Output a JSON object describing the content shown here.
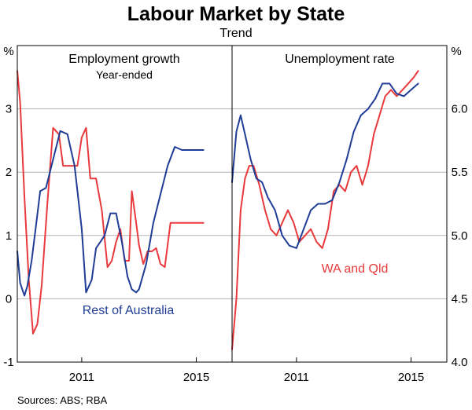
{
  "figure": {
    "title": "Labour Market by State",
    "subtitle": "Trend",
    "source": "Sources:  ABS; RBA"
  },
  "colors": {
    "rest_of_australia": "#1f3c96",
    "wa_and_qld": "#e8393c",
    "grid": "#b3b3b3"
  },
  "chart_data": [
    {
      "type": "line",
      "title": "Employment growth",
      "subtitle": "Year-ended",
      "ylabel": "%",
      "ylim": [
        -1,
        4
      ],
      "yticks": [
        "-1",
        "0",
        "1",
        "2",
        "3"
      ],
      "xlim": [
        2008.75,
        2016.25
      ],
      "xticks": [
        {
          "value": 2011.0,
          "label": "2011"
        },
        {
          "value": 2015.0,
          "label": "2015"
        }
      ],
      "grid": true,
      "series": [
        {
          "name": "Rest of Australia",
          "color": "#1f3c96",
          "x": [
            2008.75,
            2008.85,
            2009.0,
            2009.1,
            2009.25,
            2009.4,
            2009.55,
            2009.75,
            2010.0,
            2010.25,
            2010.5,
            2010.75,
            2011.0,
            2011.15,
            2011.35,
            2011.5,
            2011.65,
            2011.8,
            2012.0,
            2012.2,
            2012.4,
            2012.6,
            2012.75,
            2012.9,
            2013.0,
            2013.25,
            2013.5,
            2013.75,
            2014.0,
            2014.25,
            2014.5,
            2014.75,
            2015.0,
            2015.1,
            2015.25
          ],
          "y": [
            0.75,
            0.25,
            0.05,
            0.2,
            0.6,
            1.15,
            1.7,
            1.75,
            2.2,
            2.65,
            2.6,
            2.1,
            1.1,
            0.1,
            0.3,
            0.8,
            0.9,
            1.0,
            1.35,
            1.35,
            0.9,
            0.35,
            0.15,
            0.1,
            0.15,
            0.55,
            1.2,
            1.65,
            2.1,
            2.4,
            2.35,
            2.35,
            2.35,
            2.35,
            2.35
          ]
        },
        {
          "name": "WA and Qld",
          "color": "#e8393c",
          "x": [
            2008.75,
            2008.85,
            2009.0,
            2009.15,
            2009.3,
            2009.45,
            2009.6,
            2009.8,
            2010.0,
            2010.2,
            2010.35,
            2010.5,
            2010.7,
            2010.85,
            2011.0,
            2011.15,
            2011.3,
            2011.5,
            2011.7,
            2011.9,
            2012.05,
            2012.2,
            2012.35,
            2012.5,
            2012.65,
            2012.75,
            2012.9,
            2013.0,
            2013.15,
            2013.3,
            2013.45,
            2013.6,
            2013.75,
            2013.9,
            2014.0,
            2014.1,
            2014.25,
            2014.4,
            2014.5,
            2014.6,
            2014.75,
            2014.9,
            2015.0,
            2015.1,
            2015.25
          ],
          "y": [
            3.6,
            3.1,
            1.6,
            0.3,
            -0.55,
            -0.4,
            0.2,
            1.5,
            2.7,
            2.6,
            2.1,
            2.1,
            2.1,
            2.1,
            2.55,
            2.7,
            1.9,
            1.9,
            1.4,
            0.5,
            0.6,
            0.9,
            1.1,
            0.6,
            0.6,
            1.7,
            1.2,
            0.85,
            0.55,
            0.75,
            0.75,
            0.8,
            0.55,
            0.5,
            0.85,
            1.2,
            1.2,
            1.2,
            1.2,
            1.2,
            1.2,
            1.2,
            1.2,
            1.2,
            1.2
          ]
        }
      ]
    },
    {
      "type": "line",
      "title": "Unemployment rate",
      "ylabel": "%",
      "ylim": [
        4.0,
        6.5
      ],
      "yticks": [
        "4.0",
        "4.5",
        "5.0",
        "5.5",
        "6.0"
      ],
      "xlim": [
        2008.75,
        2016.25
      ],
      "xticks": [
        {
          "value": 2011.0,
          "label": "2011"
        },
        {
          "value": 2015.0,
          "label": "2015"
        }
      ],
      "grid": true,
      "series": [
        {
          "name": "Rest of Australia",
          "color": "#1f3c96",
          "x": [
            2008.75,
            2008.9,
            2009.05,
            2009.2,
            2009.4,
            2009.6,
            2009.8,
            2010.0,
            2010.25,
            2010.5,
            2010.75,
            2011.0,
            2011.25,
            2011.5,
            2011.75,
            2012.0,
            2012.25,
            2012.5,
            2012.75,
            2013.0,
            2013.25,
            2013.5,
            2013.75,
            2014.0,
            2014.25,
            2014.5,
            2014.75,
            2015.0,
            2015.25
          ],
          "y": [
            5.42,
            5.82,
            5.95,
            5.8,
            5.6,
            5.45,
            5.42,
            5.3,
            5.2,
            5.0,
            4.92,
            4.9,
            5.05,
            5.2,
            5.25,
            5.25,
            5.28,
            5.42,
            5.6,
            5.82,
            5.95,
            6.0,
            6.08,
            6.2,
            6.2,
            6.12,
            6.1,
            6.15,
            6.2
          ]
        },
        {
          "name": "WA and Qld",
          "color": "#e8393c",
          "x": [
            2008.75,
            2008.9,
            2009.05,
            2009.2,
            2009.35,
            2009.5,
            2009.7,
            2009.9,
            2010.1,
            2010.3,
            2010.5,
            2010.7,
            2010.9,
            2011.1,
            2011.3,
            2011.5,
            2011.7,
            2011.9,
            2012.1,
            2012.3,
            2012.5,
            2012.7,
            2012.9,
            2013.1,
            2013.3,
            2013.5,
            2013.7,
            2013.9,
            2014.1,
            2014.3,
            2014.5,
            2014.7,
            2014.9,
            2015.1,
            2015.25
          ],
          "y": [
            4.1,
            4.5,
            5.2,
            5.45,
            5.55,
            5.55,
            5.4,
            5.2,
            5.05,
            5.0,
            5.1,
            5.2,
            5.1,
            4.95,
            5.0,
            5.05,
            4.95,
            4.9,
            5.05,
            5.35,
            5.4,
            5.35,
            5.5,
            5.55,
            5.4,
            5.55,
            5.8,
            5.95,
            6.1,
            6.15,
            6.1,
            6.15,
            6.2,
            6.25,
            6.3
          ]
        }
      ]
    }
  ],
  "annotations": {
    "rest_of_australia_label": "Rest of Australia",
    "wa_and_qld_label": "WA and Qld"
  }
}
